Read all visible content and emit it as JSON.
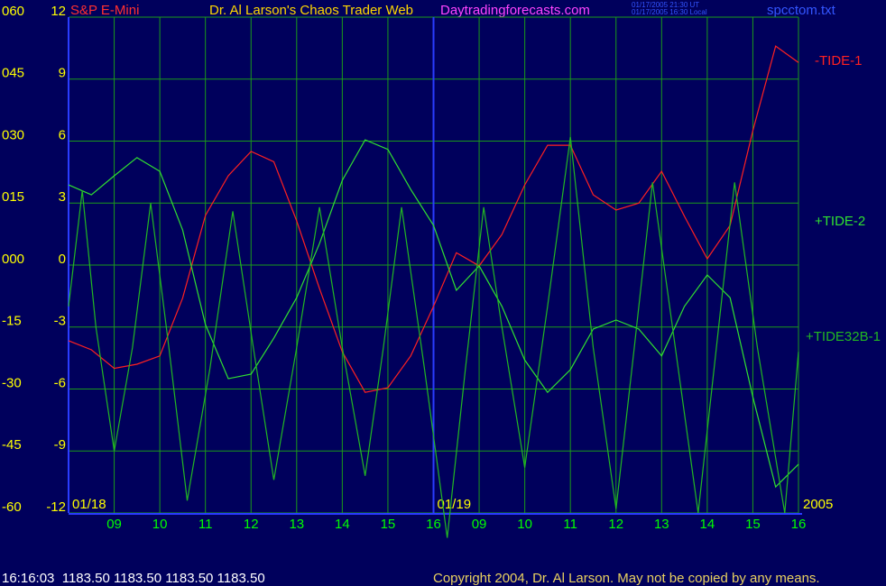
{
  "header": {
    "instrument": "S&P E-Mini",
    "site_title": "Dr. Al Larson's Chaos Trader Web",
    "site_url": "Daytradingforecasts.com",
    "time_ut": "01/17/2005 21:30 UT",
    "time_local": "01/17/2005 16:30 Local",
    "file": "spcctom.txt"
  },
  "footer": {
    "quote": "16:16:03  1183.50 1183.50 1183.50 1183.50",
    "copyright": "Copyright 2004, Dr. Al Larson. May not be copied by any means."
  },
  "chart_data": {
    "type": "line",
    "xlim": [
      0,
      16
    ],
    "xticks": [
      {
        "value": 1,
        "label": "09"
      },
      {
        "value": 2,
        "label": "10"
      },
      {
        "value": 3,
        "label": "11"
      },
      {
        "value": 4,
        "label": "12"
      },
      {
        "value": 5,
        "label": "13"
      },
      {
        "value": 6,
        "label": "14"
      },
      {
        "value": 7,
        "label": "15"
      },
      {
        "value": 8,
        "label": "16"
      },
      {
        "value": 9,
        "label": "09"
      },
      {
        "value": 10,
        "label": "10"
      },
      {
        "value": 11,
        "label": "11"
      },
      {
        "value": 12,
        "label": "12"
      },
      {
        "value": 13,
        "label": "13"
      },
      {
        "value": 14,
        "label": "14"
      },
      {
        "value": 15,
        "label": "15"
      },
      {
        "value": 16,
        "label": "16"
      }
    ],
    "date_labels": [
      {
        "value": 0,
        "label": "01/18"
      },
      {
        "value": 8,
        "label": "01/19"
      }
    ],
    "year": "2005",
    "ylim": [
      -60,
      60
    ],
    "yticks": [
      {
        "value": 60,
        "label": "060"
      },
      {
        "value": 45,
        "label": "045"
      },
      {
        "value": 30,
        "label": "030"
      },
      {
        "value": 15,
        "label": "015"
      },
      {
        "value": 0,
        "label": "000"
      },
      {
        "value": -15,
        "label": "-15"
      },
      {
        "value": -30,
        "label": "-30"
      },
      {
        "value": -45,
        "label": "-45"
      },
      {
        "value": -60,
        "label": "-60"
      }
    ],
    "y2lim": [
      -12,
      12
    ],
    "y2ticks": [
      12,
      9,
      6,
      3,
      0,
      -3,
      -6,
      -9,
      -12
    ],
    "grid": true,
    "series": [
      {
        "name": "-TIDE-1",
        "color": "#ff2020",
        "x": [
          0,
          0.5,
          1,
          1.5,
          2,
          2.5,
          3,
          3.5,
          4,
          4.5,
          5,
          5.5,
          6,
          6.5,
          7,
          7.5,
          8,
          8.5,
          9,
          9.5,
          10,
          10.5,
          11,
          11.5,
          12,
          12.5,
          13,
          13.5,
          14,
          14.5,
          15,
          15.5,
          16
        ],
        "values": [
          -18.3,
          -20.5,
          -25,
          -24,
          -22,
          -8,
          12,
          21.6,
          27.5,
          25,
          10.7,
          -5.7,
          -21,
          -30.8,
          -29.7,
          -22,
          -10,
          3,
          -0.2,
          7.4,
          19.4,
          29,
          29,
          17,
          13.3,
          15,
          22.7,
          11.8,
          1.5,
          9.6,
          32.5,
          53,
          49
        ]
      },
      {
        "name": "+TIDE-2",
        "color": "#30e030",
        "x": [
          0,
          0.5,
          1,
          1.5,
          2,
          2.5,
          3,
          3.5,
          4,
          4.5,
          5,
          5.5,
          6,
          6.5,
          7,
          7.5,
          8,
          8.5,
          9,
          9.5,
          10,
          10.5,
          11,
          11.5,
          12,
          12.5,
          13,
          13.5,
          14,
          14.5,
          15,
          15.5,
          16
        ],
        "values": [
          19.4,
          17,
          21.6,
          26,
          22.7,
          8.5,
          -14.4,
          -27.5,
          -26.4,
          -17.7,
          -7.9,
          5.2,
          20.5,
          30.3,
          28,
          18.3,
          9.6,
          -6.1,
          -0.2,
          -10,
          -23,
          -30.8,
          -25.3,
          -15.5,
          -13.3,
          -15.5,
          -22,
          -10,
          -2.4,
          -7.9,
          -31.9,
          -53.7,
          -48.2
        ]
      },
      {
        "name": "+TIDE32B-1",
        "color": "#22b822",
        "x": [
          0,
          0.3,
          0.6,
          1,
          1.4,
          1.8,
          2.2,
          2.6,
          3.1,
          3.6,
          4.05,
          4.5,
          5,
          5.5,
          6,
          6.5,
          6.9,
          7.3,
          7.8,
          8.3,
          8.7,
          9.1,
          9.5,
          10,
          10.5,
          11,
          11.5,
          12,
          12.4,
          12.8,
          13.3,
          13.8,
          14.2,
          14.6,
          15.1,
          15.7,
          16
        ],
        "values": [
          -10,
          18,
          -15,
          -45,
          -20,
          15,
          -20,
          -57,
          -25,
          13,
          -20,
          -52,
          -20,
          14,
          -20,
          -51,
          -20,
          14,
          -25,
          -66,
          -25,
          14,
          -15,
          -49,
          -10,
          31,
          -20,
          -59,
          -20,
          20,
          -20,
          -60,
          -20,
          20,
          -20,
          -60,
          -21
        ]
      }
    ]
  }
}
